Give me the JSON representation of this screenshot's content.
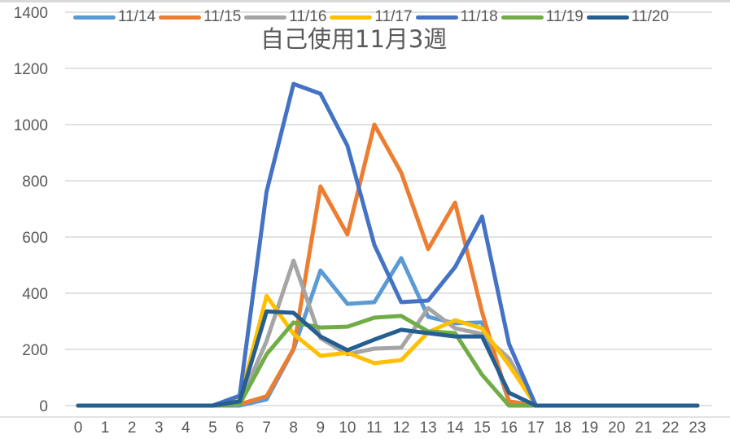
{
  "chart_data": {
    "type": "line",
    "title": "自己使用11月3週",
    "xlabel": "",
    "ylabel": "",
    "x": [
      0,
      1,
      2,
      3,
      4,
      5,
      6,
      7,
      8,
      9,
      10,
      11,
      12,
      13,
      14,
      15,
      16,
      17,
      18,
      19,
      20,
      21,
      22,
      23
    ],
    "x_tick_labels": [
      "0",
      "1",
      "2",
      "3",
      "4",
      "5",
      "6",
      "7",
      "8",
      "9",
      "10",
      "11",
      "12",
      "13",
      "14",
      "15",
      "16",
      "17",
      "18",
      "19",
      "20",
      "21",
      "22",
      "23"
    ],
    "ylim": [
      0,
      1400
    ],
    "y_ticks": [
      0,
      200,
      400,
      600,
      800,
      1000,
      1200,
      1400
    ],
    "y_tick_labels": [
      "0",
      "200",
      "400",
      "600",
      "800",
      "1000",
      "1200",
      "1400"
    ],
    "grid": true,
    "legend_position": "top",
    "series": [
      {
        "name": "11/14",
        "color": "#5b9bd5",
        "values": [
          0,
          0,
          0,
          0,
          0,
          0,
          0,
          22,
          200,
          481,
          362,
          368,
          525,
          316,
          293,
          296,
          15,
          0,
          0,
          0,
          0,
          0,
          0,
          0
        ]
      },
      {
        "name": "11/15",
        "color": "#ed7d31",
        "values": [
          0,
          0,
          0,
          0,
          0,
          0,
          5,
          33,
          202,
          780,
          609,
          1000,
          829,
          557,
          722,
          333,
          15,
          0,
          0,
          0,
          0,
          0,
          0,
          0
        ]
      },
      {
        "name": "11/16",
        "color": "#a5a5a5",
        "values": [
          0,
          0,
          0,
          0,
          0,
          0,
          10,
          230,
          516,
          240,
          183,
          203,
          206,
          347,
          275,
          255,
          168,
          0,
          0,
          0,
          0,
          0,
          0,
          0
        ]
      },
      {
        "name": "11/17",
        "color": "#ffc000",
        "values": [
          0,
          0,
          0,
          0,
          0,
          0,
          20,
          390,
          255,
          177,
          188,
          151,
          162,
          261,
          304,
          275,
          145,
          0,
          0,
          0,
          0,
          0,
          0,
          0
        ]
      },
      {
        "name": "11/18",
        "color": "#4472c4",
        "values": [
          0,
          0,
          0,
          0,
          0,
          0,
          35,
          762,
          1145,
          1110,
          925,
          572,
          368,
          374,
          493,
          673,
          220,
          0,
          0,
          0,
          0,
          0,
          0,
          0
        ]
      },
      {
        "name": "11/19",
        "color": "#70ad47",
        "values": [
          0,
          0,
          0,
          0,
          0,
          0,
          5,
          183,
          296,
          278,
          281,
          313,
          319,
          264,
          258,
          110,
          0,
          0,
          0,
          0,
          0,
          0,
          0,
          0
        ]
      },
      {
        "name": "11/20",
        "color": "#255e91",
        "values": [
          0,
          0,
          0,
          0,
          0,
          0,
          15,
          335,
          330,
          246,
          197,
          235,
          270,
          258,
          246,
          246,
          46,
          0,
          0,
          0,
          0,
          0,
          0,
          0
        ]
      }
    ]
  },
  "legend": {
    "items": [
      {
        "label": "11/14",
        "color": "#5b9bd5"
      },
      {
        "label": "11/15",
        "color": "#ed7d31"
      },
      {
        "label": "11/16",
        "color": "#a5a5a5"
      },
      {
        "label": "11/17",
        "color": "#ffc000"
      },
      {
        "label": "11/18",
        "color": "#4472c4"
      },
      {
        "label": "11/19",
        "color": "#70ad47"
      },
      {
        "label": "11/20",
        "color": "#255e91"
      }
    ]
  },
  "title": "自己使用11月3週",
  "colors": {
    "gridline": "#d9d9d9",
    "text": "#595959",
    "background": "#ffffff"
  }
}
